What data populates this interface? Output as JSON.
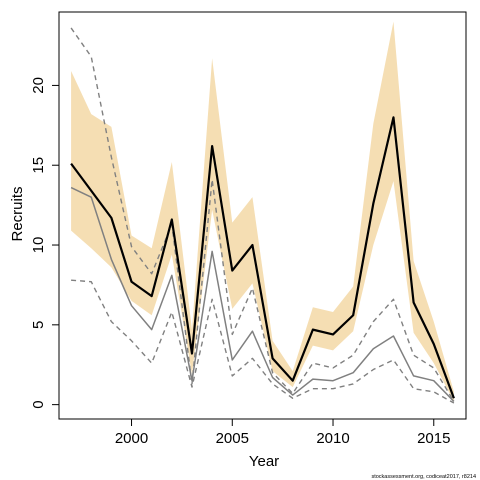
{
  "chart_data": {
    "type": "line",
    "xlabel": "Year",
    "ylabel": "Recruits",
    "xlim": [
      1996.4,
      2016.6
    ],
    "ylim": [
      -0.9,
      24.6
    ],
    "x_ticks": [
      2000,
      2005,
      2010,
      2015
    ],
    "x_tick_labels": [
      "2000",
      "2005",
      "2010",
      "2015"
    ],
    "y_ticks": [
      0,
      5,
      10,
      15,
      20
    ],
    "y_tick_labels": [
      "0",
      "5",
      "10",
      "15",
      "20"
    ],
    "grid": false,
    "legend": "none",
    "footnote": "stockassessment.org, codiceat2017, r8214",
    "colors": {
      "band": "#f5deb3",
      "main_line": "#000000",
      "alt_line": "#808080",
      "alt_ci_line": "#808080"
    },
    "x": [
      1997,
      1998,
      1999,
      2000,
      2001,
      2002,
      2003,
      2004,
      2005,
      2006,
      2007,
      2008,
      2009,
      2010,
      2011,
      2012,
      2013,
      2014,
      2015,
      2016
    ],
    "series": [
      {
        "role": "band",
        "lower": [
          10.9,
          9.8,
          8.6,
          6.5,
          5.6,
          9.4,
          1.9,
          12.2,
          6.0,
          7.6,
          2.1,
          1.1,
          3.7,
          3.4,
          4.6,
          10.0,
          14.0,
          4.5,
          2.6,
          0.2
        ],
        "upper": [
          20.9,
          18.2,
          17.4,
          10.6,
          9.8,
          15.2,
          4.7,
          21.7,
          11.4,
          13.0,
          4.0,
          2.1,
          6.1,
          5.8,
          7.4,
          17.6,
          24.0,
          9.0,
          5.2,
          0.8
        ]
      },
      {
        "role": "main",
        "values": [
          15.1,
          13.4,
          11.7,
          7.7,
          6.8,
          11.6,
          3.2,
          16.2,
          8.4,
          10.0,
          2.9,
          1.5,
          4.7,
          4.4,
          5.6,
          12.6,
          18.0,
          6.4,
          3.8,
          0.4
        ]
      },
      {
        "role": "alternative",
        "values": [
          13.6,
          13.0,
          9.1,
          6.2,
          4.7,
          8.1,
          1.5,
          9.6,
          2.8,
          4.6,
          1.7,
          0.6,
          1.6,
          1.5,
          2.0,
          3.5,
          4.3,
          1.8,
          1.5,
          0.2
        ]
      },
      {
        "role": "alternative-upper",
        "values": [
          23.6,
          21.8,
          15.5,
          9.9,
          8.2,
          11.3,
          1.3,
          14.1,
          4.4,
          7.3,
          2.0,
          0.7,
          2.6,
          2.3,
          3.1,
          5.2,
          6.6,
          3.1,
          2.3,
          0.2
        ]
      },
      {
        "role": "alternative-lower",
        "values": [
          7.8,
          7.7,
          5.2,
          4.0,
          2.6,
          5.8,
          1.1,
          6.6,
          1.8,
          2.9,
          1.3,
          0.4,
          1.0,
          1.0,
          1.3,
          2.2,
          2.8,
          1.0,
          0.8,
          0.1
        ]
      }
    ]
  }
}
